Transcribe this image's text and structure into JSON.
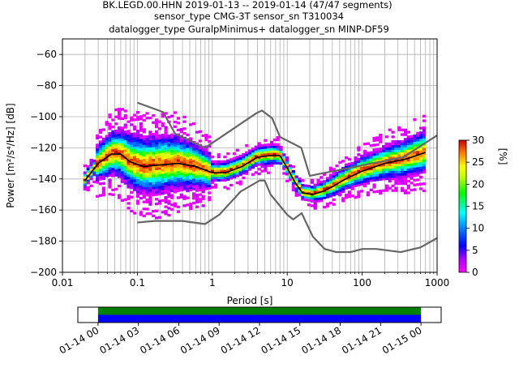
{
  "chart_data": [
    {
      "type": "heatmap",
      "title_lines": [
        "BK.LEGD.00.HHN   2019-01-13 -- 2019-01-14  (47/47 segments)",
        "sensor_type CMG-3T sensor_sn T310034",
        "datalogger_type GuralpMinimus+ datalogger_sn MINP-DF59"
      ],
      "xlabel": "Period [s]",
      "ylabel": "Power [m²/s⁴/Hz] [dB]",
      "xscale": "log",
      "xlim": [
        0.01,
        1000
      ],
      "ylim": [
        -200,
        -50
      ],
      "xticks": [
        {
          "value": 0.01,
          "label": "0.01"
        },
        {
          "value": 0.1,
          "label": "0.1"
        },
        {
          "value": 1,
          "label": "1"
        },
        {
          "value": 10,
          "label": "10"
        },
        {
          "value": 100,
          "label": "100"
        },
        {
          "value": 1000,
          "label": "1000"
        }
      ],
      "yticks": [
        {
          "value": -60,
          "label": "−60"
        },
        {
          "value": -80,
          "label": "−80"
        },
        {
          "value": -100,
          "label": "−100"
        },
        {
          "value": -120,
          "label": "−120"
        },
        {
          "value": -140,
          "label": "−140"
        },
        {
          "value": -160,
          "label": "−160"
        },
        {
          "value": -180,
          "label": "−180"
        },
        {
          "value": -200,
          "label": "−200"
        }
      ],
      "grid": true,
      "colorbar": {
        "label": "[%]",
        "range": [
          0,
          30
        ],
        "ticks": [
          "0",
          "5",
          "10",
          "15",
          "20",
          "25",
          "30"
        ]
      },
      "series": [
        {
          "name": "",
          "kind": "high-noise-model",
          "color": "#666666",
          "x": [
            0.1,
            0.22,
            0.32,
            0.8,
            3.8,
            4.6,
            6.3,
            8,
            15.4,
            20,
            354.8,
            1000
          ],
          "y": [
            -91,
            -97,
            -111,
            -120,
            -98,
            -96,
            -101,
            -113,
            -120,
            -138,
            -126,
            -112
          ]
        },
        {
          "name": "",
          "kind": "low-noise-model",
          "color": "#666666",
          "x": [
            0.1,
            0.17,
            0.4,
            0.8,
            1.24,
            2.4,
            4.3,
            5,
            6,
            10,
            12,
            15.6,
            21.9,
            31.6,
            45,
            70,
            101,
            154,
            328,
            600,
            1000
          ],
          "y": [
            -168,
            -167,
            -167,
            -169,
            -163,
            -148,
            -141,
            -141,
            -150,
            -163,
            -166,
            -162,
            -177,
            -185,
            -187,
            -187,
            -185,
            -185,
            -187,
            -184,
            -178
          ]
        },
        {
          "name": "",
          "kind": "mode",
          "color": "#000000",
          "x": [
            0.02,
            0.03,
            0.045,
            0.06,
            0.08,
            0.12,
            0.2,
            0.35,
            0.6,
            1.0,
            1.5,
            2.5,
            4,
            6,
            8,
            10,
            13,
            16,
            22,
            30,
            40,
            60,
            100,
            200,
            400,
            600,
            700
          ],
          "y": [
            -141,
            -130,
            -124,
            -124,
            -129,
            -132,
            -131,
            -130,
            -132,
            -136,
            -136,
            -132,
            -126,
            -125,
            -125,
            -133,
            -143,
            -149,
            -150,
            -148,
            -145,
            -140,
            -135,
            -130,
            -127,
            -124,
            -123
          ]
        }
      ]
    },
    {
      "type": "timeline",
      "tick_labels": [
        "01-14 00",
        "01-14 03",
        "01-14 06",
        "01-14 09",
        "01-14 12",
        "01-14 15",
        "01-14 18",
        "01-14 21",
        "01-15 00"
      ],
      "range_hours": [
        -1.5,
        25.5
      ],
      "coverage_hours": [
        0,
        24
      ],
      "colors": {
        "top": "#008000",
        "bottom": "#0000ff"
      }
    }
  ]
}
